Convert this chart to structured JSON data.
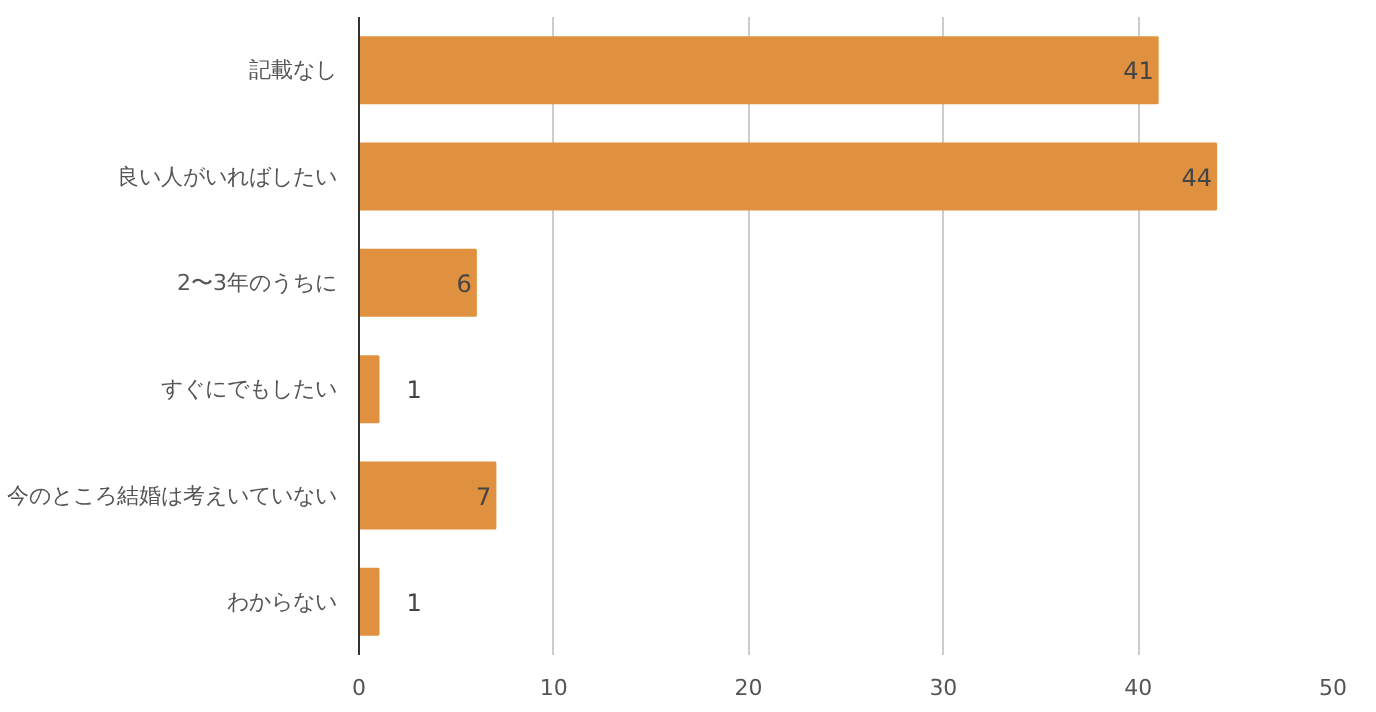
{
  "chart_data": {
    "type": "bar",
    "orientation": "horizontal",
    "categories": [
      "記載なし",
      "良い人がいればしたい",
      "2〜3年のうちに",
      "すぐにでもしたい",
      "今のところ結婚は考えいていない",
      "わからない"
    ],
    "values": [
      41,
      44,
      6,
      1,
      7,
      1
    ],
    "color": "#e0913f",
    "xlim": [
      0,
      50
    ],
    "xticks": [
      0,
      10,
      20,
      30,
      40,
      50
    ],
    "grid": "x",
    "data_labels": true
  }
}
